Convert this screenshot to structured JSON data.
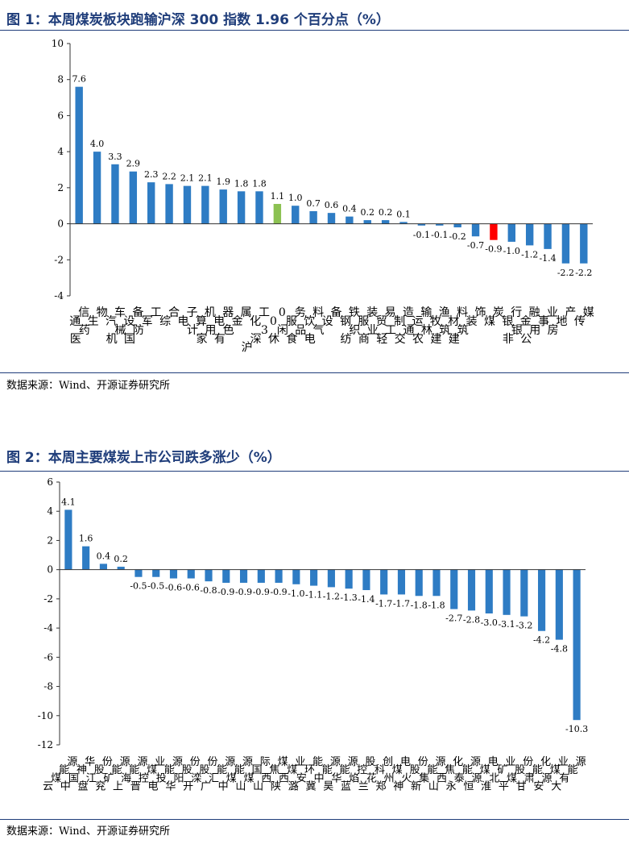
{
  "figures": [
    {
      "title": "图 1：本周煤炭板块跑输沪深 300 指数 1.96 个百分点（%）",
      "source": "数据来源：Wind、开源证券研究所"
    },
    {
      "title": "图 2：本周主要煤炭上市公司跌多涨少（%）",
      "source": "数据来源：Wind、开源证券研究所"
    }
  ],
  "colors": {
    "bar": "#2e7cc4",
    "benchmark": "#8cc152",
    "coal": "#ff0000",
    "title": "#1f3d7a"
  },
  "chart_data": [
    {
      "type": "bar",
      "ylim": [
        -4,
        10
      ],
      "yticks": [
        -4,
        -2,
        0,
        2,
        4,
        6,
        8,
        10
      ],
      "categories": [
        "通信",
        "医药生物",
        "汽车",
        "机械设备",
        "国防军工",
        "综合",
        "电子",
        "计算机",
        "家用电器",
        "有色金属",
        "化工",
        "沪深300",
        "休闲服务",
        "食品饮料",
        "电气设备",
        "钢铁",
        "纺织服装",
        "商业贸易",
        "轻工制造",
        "交通运输",
        "农林牧渔",
        "建筑材料",
        "建筑装饰",
        "煤炭",
        "银行",
        "非银金融",
        "公用事业",
        "房地产",
        "传媒"
      ],
      "values": [
        7.6,
        4.0,
        3.3,
        2.9,
        2.3,
        2.2,
        2.1,
        2.1,
        1.9,
        1.8,
        1.8,
        1.1,
        1.0,
        0.7,
        0.6,
        0.4,
        0.2,
        0.2,
        0.1,
        -0.1,
        -0.1,
        -0.2,
        -0.7,
        -0.9,
        -1.0,
        -1.2,
        -1.4,
        -2.2,
        -2.2
      ],
      "labels": [
        "7.6",
        "4.0",
        "3.3",
        "2.9",
        "2.3",
        "2.2",
        "2.1",
        "2.1",
        "1.9",
        "1.8",
        "1.8",
        "1.1",
        "1.0",
        "0.7",
        "0.6",
        "0.4",
        "0.2",
        "0.2",
        "0.1",
        "-0.1",
        "-0.1",
        "-0.2",
        "-0.7",
        "-0.9",
        "-1.0",
        "-1.2",
        "-1.4",
        "-2.2",
        "-2.2"
      ],
      "highlight": {
        "沪深300": "benchmark",
        "煤炭": "coal"
      },
      "grid": false,
      "legend": "none"
    },
    {
      "type": "bar",
      "ylim": [
        -12,
        6
      ],
      "yticks": [
        -12,
        -10,
        -8,
        -6,
        -4,
        -2,
        0,
        2,
        4,
        6
      ],
      "categories": [
        "云煤能源",
        "中国神华",
        "盘江股份",
        "兖矿能源",
        "上海能源",
        "晋控煤业",
        "电投能源",
        "华阳股份",
        "开滦股份",
        "广汇能源",
        "中煤能源",
        "山煤国际",
        "山西焦煤",
        "陕西煤业",
        "潞安环能",
        "冀中能源",
        "昊华能源",
        "蓝焰控股",
        "兰花科创",
        "郑州煤电",
        "神火股份",
        "新集能源",
        "山西焦化",
        "永泰能源",
        "恒源煤电",
        "淮北矿业",
        "平煤股份",
        "甘肃能化",
        "安源煤业",
        "大有能源"
      ],
      "values": [
        4.1,
        1.6,
        0.4,
        0.2,
        -0.5,
        -0.5,
        -0.6,
        -0.6,
        -0.8,
        -0.9,
        -0.9,
        -0.9,
        -0.9,
        -1.0,
        -1.1,
        -1.2,
        -1.3,
        -1.4,
        -1.7,
        -1.7,
        -1.8,
        -1.8,
        -2.7,
        -2.8,
        -3.0,
        -3.1,
        -3.2,
        -4.2,
        -4.8,
        -10.3
      ],
      "labels": [
        "4.1",
        "1.6",
        "0.4",
        "0.2",
        "-0.5",
        "-0.5",
        "-0.6",
        "-0.6",
        "-0.8",
        "-0.9",
        "-0.9",
        "-0.9",
        "-0.9",
        "-1.0",
        "-1.1",
        "-1.2",
        "-1.3",
        "-1.4",
        "-1.7",
        "-1.7",
        "-1.8",
        "-1.8",
        "-2.7",
        "-2.8",
        "-3.0",
        "-3.1",
        "-3.2",
        "-4.2",
        "-4.8",
        "-10.3"
      ],
      "grid": false,
      "legend": "none"
    }
  ]
}
